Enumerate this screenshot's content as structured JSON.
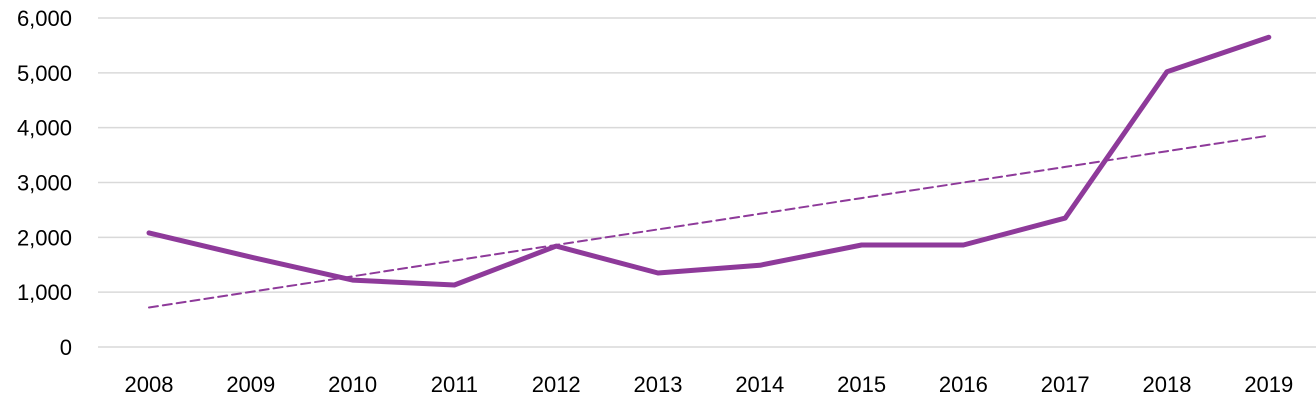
{
  "chart_data": {
    "type": "line",
    "title": "",
    "xlabel": "",
    "ylabel": "",
    "categories": [
      "2008",
      "2009",
      "2010",
      "2011",
      "2012",
      "2013",
      "2014",
      "2015",
      "2016",
      "2017",
      "2018",
      "2019"
    ],
    "series": [
      {
        "color": "#8e3a9a",
        "style": "solid",
        "values": [
          2080,
          1640,
          1220,
          1130,
          1840,
          1350,
          1490,
          1860,
          1860,
          2350,
          5020,
          5650
        ]
      },
      {
        "color": "#8e3a9a",
        "style": "dashed",
        "trendline": true,
        "values": [
          720,
          1005,
          1290,
          1575,
          1860,
          2145,
          2430,
          2715,
          3000,
          3285,
          3570,
          3855
        ]
      }
    ],
    "ylim": [
      0,
      6000
    ],
    "yticks": [
      0,
      1000,
      2000,
      3000,
      4000,
      5000,
      6000
    ],
    "ytick_labels": [
      "0",
      "1,000",
      "2,000",
      "3,000",
      "4,000",
      "5,000",
      "6,000"
    ],
    "grid": true,
    "legend": "none"
  }
}
